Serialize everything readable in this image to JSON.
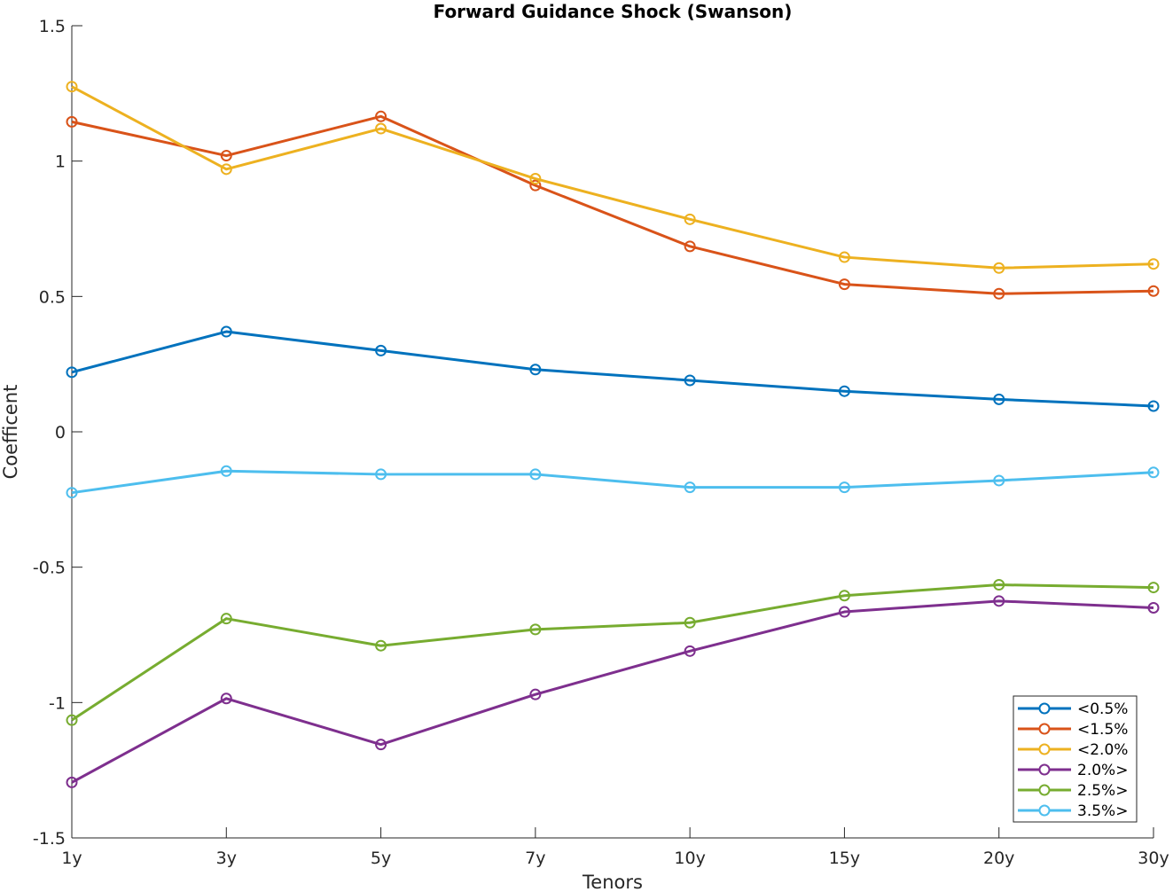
{
  "chart_data": {
    "type": "line",
    "title": "Forward Guidance Shock (Swanson)",
    "xlabel": "Tenors",
    "ylabel": "Coefficent",
    "categories": [
      "1y",
      "3y",
      "5y",
      "7y",
      "10y",
      "15y",
      "20y",
      "30y"
    ],
    "ylim": [
      -1.5,
      1.5
    ],
    "yticks": [
      1.5,
      1,
      0.5,
      0,
      -0.5,
      -1,
      -1.5
    ],
    "ytick_labels": [
      "1.5",
      "1",
      "0.5",
      "0",
      "-0.5",
      "-1",
      "-1.5"
    ],
    "grid": false,
    "legend_position": "bottom-right",
    "marker": "circle",
    "series": [
      {
        "name": "<0.5%",
        "color": "#0072BD",
        "values": [
          0.22,
          0.37,
          0.3,
          0.23,
          0.19,
          0.15,
          0.12,
          0.095
        ]
      },
      {
        "name": "<1.5%",
        "color": "#D95319",
        "values": [
          1.145,
          1.02,
          1.165,
          0.91,
          0.685,
          0.545,
          0.51,
          0.52
        ]
      },
      {
        "name": "<2.0%",
        "color": "#EDB120",
        "values": [
          1.275,
          0.97,
          1.12,
          0.935,
          0.785,
          0.645,
          0.605,
          0.62
        ]
      },
      {
        "name": "2.0%>",
        "color": "#7E2F8E",
        "values": [
          -1.295,
          -0.985,
          -1.155,
          -0.97,
          -0.81,
          -0.665,
          -0.625,
          -0.65
        ]
      },
      {
        "name": "2.5%>",
        "color": "#77AC30",
        "values": [
          -1.065,
          -0.69,
          -0.79,
          -0.73,
          -0.705,
          -0.605,
          -0.565,
          -0.575
        ]
      },
      {
        "name": "3.5%>",
        "color": "#4DBEEE",
        "values": [
          -0.225,
          -0.145,
          -0.157,
          -0.157,
          -0.205,
          -0.205,
          -0.18,
          -0.15
        ]
      }
    ]
  }
}
